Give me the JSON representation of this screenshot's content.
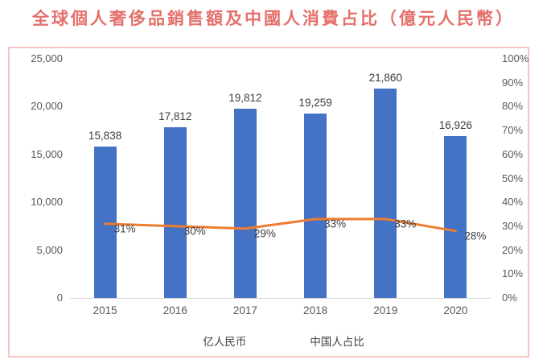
{
  "title": "全球個人奢侈品銷售額及中國人消費占比（億元人民幣）",
  "colors": {
    "title": "#e4706b",
    "box_border": "#f5c5c4",
    "bar": "#4472c4",
    "line": "#ed7d31",
    "axis_text": "#595959",
    "data_label_text": "#3d3d3d",
    "axis_line": "#d9d9d9"
  },
  "chart_data": {
    "type": "bar",
    "subtype": "bar+line combo, dual axis",
    "categories": [
      "2015",
      "2016",
      "2017",
      "2018",
      "2019",
      "2020"
    ],
    "series": [
      {
        "name": "亿人民币",
        "type": "bar",
        "axis": "left",
        "color": "#4472c4",
        "values": [
          15838,
          17812,
          19812,
          19259,
          21860,
          16926
        ],
        "labels": [
          "15,838",
          "17,812",
          "19,812",
          "19,259",
          "21,860",
          "16,926"
        ]
      },
      {
        "name": "中国人占比",
        "type": "line",
        "axis": "right",
        "color": "#ed7d31",
        "values": [
          31,
          30,
          29,
          33,
          33,
          28
        ],
        "labels": [
          "31%",
          "30%",
          "29%",
          "33%",
          "33%",
          "28%"
        ]
      }
    ],
    "left_axis": {
      "min": 0,
      "max": 25000,
      "step": 5000,
      "tick_labels": [
        "0",
        "5,000",
        "10,000",
        "15,000",
        "20,000",
        "25,000"
      ]
    },
    "right_axis": {
      "min": 0,
      "max": 100,
      "step": 10,
      "tick_labels": [
        "0%",
        "10%",
        "20%",
        "30%",
        "40%",
        "50%",
        "60%",
        "70%",
        "80%",
        "90%",
        "100%"
      ]
    },
    "grid": false,
    "legend_position": "bottom"
  },
  "legend": {
    "items": [
      {
        "label": "亿人民币"
      },
      {
        "label": "中国人占比"
      }
    ]
  }
}
